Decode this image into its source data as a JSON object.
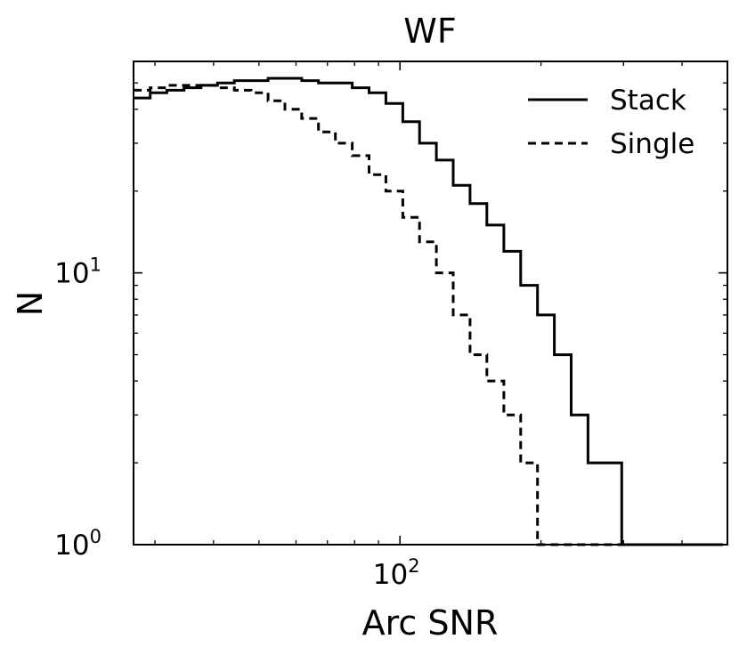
{
  "chart_data": {
    "type": "step-histogram",
    "title": "WF",
    "xlabel": "Arc SNR",
    "ylabel": "N",
    "xscale": "log",
    "yscale": "log",
    "xlim": [
      27,
      500
    ],
    "ylim": [
      1,
      60
    ],
    "x_ticks": [
      {
        "base": "10",
        "exp": "2",
        "value": 100
      }
    ],
    "y_ticks": [
      {
        "base": "10",
        "exp": "0",
        "value": 1
      },
      {
        "base": "10",
        "exp": "1",
        "value": 10
      }
    ],
    "legend": {
      "position": "top-right"
    },
    "bin_edges": [
      27,
      29.3,
      31.8,
      34.6,
      37.6,
      40.8,
      44.3,
      48.1,
      52.3,
      56.8,
      61.7,
      67.0,
      72.8,
      79.1,
      85.9,
      93.3,
      101.4,
      110.1,
      119.6,
      129.9,
      141.1,
      153.3,
      166.6,
      181.0,
      196.6,
      213.6,
      232.0,
      252.0,
      273.8,
      297.4,
      323.1,
      351.0,
      381.3,
      414.2,
      450.0,
      488.8
    ],
    "series": [
      {
        "name": "Stack",
        "style": "solid",
        "values": [
          44,
          46,
          47,
          48,
          49,
          50,
          51,
          51,
          52,
          52,
          51,
          50,
          50,
          48,
          46,
          42,
          36,
          30,
          26,
          21,
          18,
          15,
          12,
          9,
          7,
          5,
          3,
          2,
          2,
          1,
          1,
          1,
          1,
          1,
          1
        ]
      },
      {
        "name": "Single",
        "style": "dashed",
        "values": [
          47,
          48,
          49,
          49,
          49,
          48,
          47,
          46,
          43,
          40,
          37,
          33,
          30,
          27,
          23,
          20,
          16,
          13,
          10,
          7,
          5,
          4,
          3,
          2,
          1,
          1,
          1,
          1,
          1,
          1,
          1,
          1,
          1,
          1,
          1
        ]
      }
    ]
  }
}
